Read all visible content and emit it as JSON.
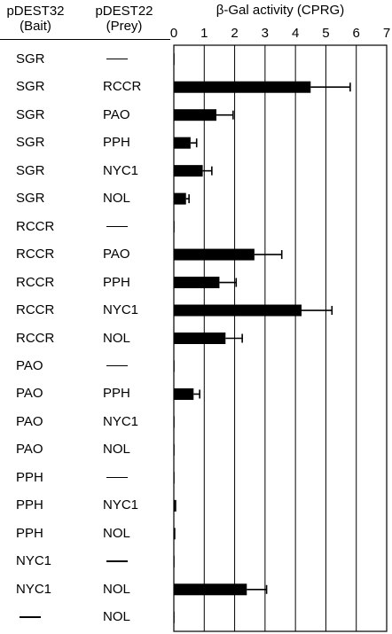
{
  "headers": {
    "bait_line1": "pDEST32",
    "bait_line2": "(Bait)",
    "prey_line1": "pDEST22",
    "prey_line2": "(Prey)"
  },
  "rows": [
    {
      "bait": "SGR",
      "prey": "—"
    },
    {
      "bait": "SGR",
      "prey": "RCCR"
    },
    {
      "bait": "SGR",
      "prey": "PAO"
    },
    {
      "bait": "SGR",
      "prey": "PPH"
    },
    {
      "bait": "SGR",
      "prey": "NYC1"
    },
    {
      "bait": "SGR",
      "prey": "NOL"
    },
    {
      "bait": "RCCR",
      "prey": "—"
    },
    {
      "bait": "RCCR",
      "prey": "PAO"
    },
    {
      "bait": "RCCR",
      "prey": "PPH"
    },
    {
      "bait": "RCCR",
      "prey": "NYC1"
    },
    {
      "bait": "RCCR",
      "prey": "NOL"
    },
    {
      "bait": "PAO",
      "prey": "—"
    },
    {
      "bait": "PAO",
      "prey": "PPH"
    },
    {
      "bait": "PAO",
      "prey": "NYC1"
    },
    {
      "bait": "PAO",
      "prey": "NOL"
    },
    {
      "bait": "PPH",
      "prey": "—"
    },
    {
      "bait": "PPH",
      "prey": "NYC1"
    },
    {
      "bait": "PPH",
      "prey": "NOL"
    },
    {
      "bait": "NYC1",
      "prey": "—"
    },
    {
      "bait": "NYC1",
      "prey": "NOL"
    },
    {
      "bait": "—",
      "prey": "NOL"
    }
  ],
  "chart_data": {
    "type": "bar",
    "orientation": "horizontal",
    "title": "β-Gal activity (CPRG)",
    "xlabel": "",
    "ylabel": "",
    "xlim": [
      0,
      7
    ],
    "xticks": [
      0,
      1,
      2,
      3,
      4,
      5,
      6,
      7
    ],
    "grid": true,
    "categories": [
      "SGR / —",
      "SGR / RCCR",
      "SGR / PAO",
      "SGR / PPH",
      "SGR / NYC1",
      "SGR / NOL",
      "RCCR / —",
      "RCCR / PAO",
      "RCCR / PPH",
      "RCCR / NYC1",
      "RCCR / NOL",
      "PAO / —",
      "PAO / PPH",
      "PAO / NYC1",
      "PAO / NOL",
      "PPH / —",
      "PPH / NYC1",
      "PPH / NOL",
      "NYC1 / —",
      "NYC1 / NOL",
      "— / NOL"
    ],
    "values": [
      0.02,
      4.5,
      1.4,
      0.55,
      0.95,
      0.4,
      0.02,
      2.65,
      1.5,
      4.2,
      1.7,
      0.02,
      0.65,
      0.02,
      0.02,
      0.02,
      0.08,
      0.05,
      0.02,
      2.4,
      0.02
    ],
    "errors": [
      0,
      1.3,
      0.55,
      0.2,
      0.3,
      0.1,
      0,
      0.9,
      0.55,
      1.0,
      0.55,
      0,
      0.2,
      0,
      0,
      0,
      0,
      0,
      0,
      0.65,
      0
    ],
    "bar_color": "#000000"
  }
}
